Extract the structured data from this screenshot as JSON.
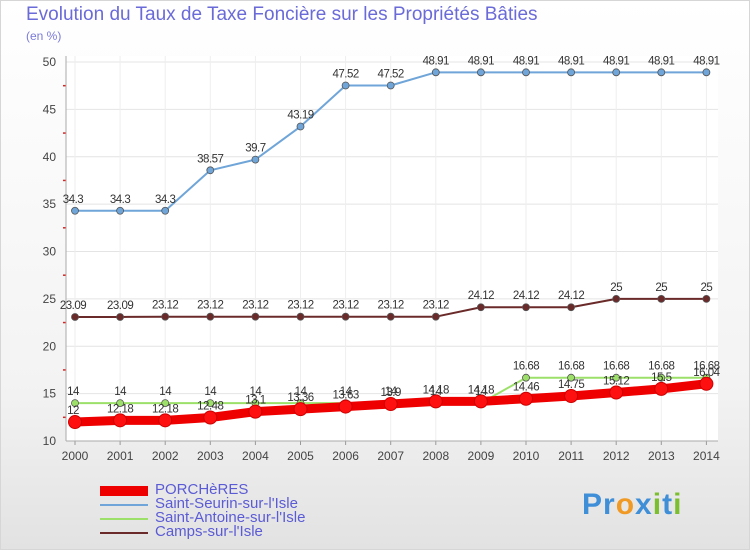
{
  "title": "Evolution du Taux de Taxe Foncière sur les Propriétés Bâties",
  "unit_label": "(en %)",
  "logo": {
    "text": "Proxiti",
    "letters": [
      "P",
      "r",
      "o",
      "x",
      "i",
      "t",
      "i"
    ],
    "letter_colors": [
      "#3f8fd8",
      "#3f8fd8",
      "#f09a25",
      "#3f8fd8",
      "#7bbf2e",
      "#3f8fd8",
      "#7bbf2e"
    ]
  },
  "chart_data": {
    "type": "line",
    "title": "Evolution du Taux de Taxe Foncière sur les Propriétés Bâties",
    "ylabel": "(en %)",
    "xlabel": "",
    "ylim": [
      10,
      50
    ],
    "yticks": [
      10,
      15,
      20,
      25,
      30,
      35,
      40,
      45,
      50
    ],
    "grid": true,
    "legend_position": "bottom-left",
    "categories": [
      "2000",
      "2001",
      "2002",
      "2003",
      "2004",
      "2005",
      "2006",
      "2007",
      "2008",
      "2009",
      "2010",
      "2011",
      "2012",
      "2013",
      "2014"
    ],
    "series": [
      {
        "name": "PORCHèRES",
        "color": "#ee0000",
        "values": [
          12,
          12.18,
          12.18,
          12.48,
          13.1,
          13.36,
          13.63,
          13.9,
          14.18,
          14.18,
          14.46,
          14.75,
          15.12,
          15.5,
          16.04
        ],
        "labels": [
          "12",
          "12.18",
          "12.18",
          "12.48",
          "13.1",
          "13.36",
          "13.63",
          "13.9",
          "14.18",
          "14.18",
          "14.46",
          "14.75",
          "15.12",
          "15.5",
          "16.04"
        ]
      },
      {
        "name": "Saint-Seurin-sur-l'Isle",
        "color": "#6fa5d8",
        "values": [
          34.3,
          34.3,
          34.3,
          38.57,
          39.7,
          43.19,
          47.52,
          47.52,
          48.91,
          48.91,
          48.91,
          48.91,
          48.91,
          48.91,
          48.91
        ],
        "labels": [
          "34.3",
          "34.3",
          "34.3",
          "38.57",
          "39.7",
          "43.19",
          "47.52",
          "47.52",
          "48.91",
          "48.91",
          "48.91",
          "48.91",
          "48.91",
          "48.91",
          "48.91"
        ]
      },
      {
        "name": "Saint-Antoine-sur-l'Isle",
        "color": "#9ce06a",
        "values": [
          14,
          14,
          14,
          14,
          14,
          14,
          14,
          14,
          14,
          14,
          16.68,
          16.68,
          16.68,
          16.68,
          16.68
        ],
        "labels": [
          "14",
          "14",
          "14",
          "14",
          "14",
          "14",
          "14",
          "14",
          "14",
          "14",
          "16.68",
          "16.68",
          "16.68",
          "16.68",
          "16.68"
        ]
      },
      {
        "name": "Camps-sur-l'Isle",
        "color": "#6b2a2a",
        "values": [
          23.09,
          23.09,
          23.12,
          23.12,
          23.12,
          23.12,
          23.12,
          23.12,
          23.12,
          24.12,
          24.12,
          24.12,
          25,
          25,
          25
        ],
        "labels": [
          "23.09",
          "23.09",
          "23.12",
          "23.12",
          "23.12",
          "23.12",
          "23.12",
          "23.12",
          "23.12",
          "24.12",
          "24.12",
          "24.12",
          "25",
          "25",
          "25"
        ]
      }
    ]
  }
}
